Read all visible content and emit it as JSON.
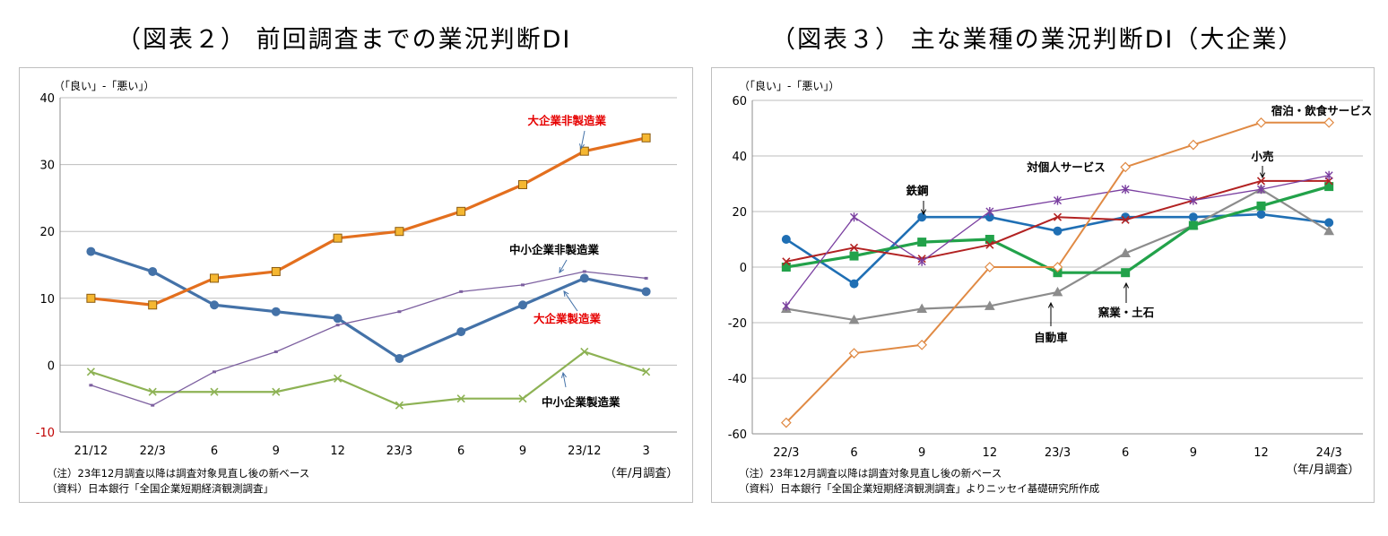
{
  "titles": {
    "left": "（図表２） 前回調査までの業況判断DI",
    "right": "（図表３） 主な業種の業況判断DI（大企業）"
  },
  "chart_data": [
    {
      "type": "line",
      "ylabel": "（「良い」-「悪い」）",
      "xlabel": "（年/月調査）",
      "ylim": [
        -10,
        40
      ],
      "yticks": [
        -10,
        0,
        10,
        20,
        30,
        40
      ],
      "categories": [
        "21/12",
        "22/3",
        "6",
        "9",
        "12",
        "23/3",
        "6",
        "9",
        "23/12",
        "3"
      ],
      "series": [
        {
          "name": "大企業製造業",
          "values": [
            17,
            14,
            9,
            8,
            7,
            1,
            5,
            9,
            13,
            11
          ],
          "color": "#4472a8"
        },
        {
          "name": "大企業非製造業",
          "values": [
            10,
            9,
            13,
            14,
            19,
            20,
            23,
            27,
            32,
            34
          ],
          "color": "#e36f1e"
        },
        {
          "name": "中小企業製造業",
          "values": [
            -1,
            -4,
            -4,
            -4,
            -2,
            -6,
            -5,
            -5,
            2,
            -1
          ],
          "color": "#8db254"
        },
        {
          "name": "中小企業非製造業",
          "values": [
            -3,
            -6,
            -1,
            2,
            6,
            8,
            11,
            12,
            14,
            13
          ],
          "color": "#7d60a0"
        }
      ],
      "notes": [
        "（注）23年12月調査以降は調査対象見直し後の新ベース",
        "（資料）日本銀行「全国企業短期経済観測調査」"
      ],
      "grid": true
    },
    {
      "type": "line",
      "ylabel": "（「良い」-「悪い」）",
      "xlabel": "（年/月調査）",
      "ylim": [
        -60,
        60
      ],
      "yticks": [
        -60,
        -40,
        -20,
        0,
        20,
        40,
        60
      ],
      "categories": [
        "22/3",
        "6",
        "9",
        "12",
        "23/3",
        "6",
        "9",
        "12",
        "24/3"
      ],
      "series": [
        {
          "name": "鉄鋼",
          "values": [
            10,
            -6,
            18,
            18,
            13,
            18,
            18,
            19,
            16
          ],
          "color": "#1f6fb4"
        },
        {
          "name": "自動車",
          "values": [
            -15,
            -19,
            -15,
            -14,
            -9,
            5,
            15,
            28,
            13
          ],
          "color": "#8c8c8c"
        },
        {
          "name": "窯業・土石",
          "values": [
            0,
            4,
            9,
            10,
            -2,
            -2,
            15,
            22,
            29
          ],
          "color": "#22a24a"
        },
        {
          "name": "小売",
          "values": [
            2,
            7,
            3,
            8,
            18,
            17,
            24,
            31,
            31
          ],
          "color": "#b22222"
        },
        {
          "name": "対個人サービス",
          "values": [
            -14,
            18,
            2,
            20,
            24,
            28,
            24,
            28,
            33
          ],
          "color": "#7a3fa0"
        },
        {
          "name": "宿泊・飲食サービス",
          "values": [
            -56,
            -31,
            -28,
            0,
            0,
            36,
            44,
            52,
            52
          ],
          "color": "#e08a44"
        }
      ],
      "notes": [
        "（注）23年12月調査以降は調査対象見直し後の新ベース",
        "（資料）日本銀行「全国企業短期経済観測調査」よりニッセイ基礎研究所作成"
      ],
      "grid": true
    }
  ]
}
